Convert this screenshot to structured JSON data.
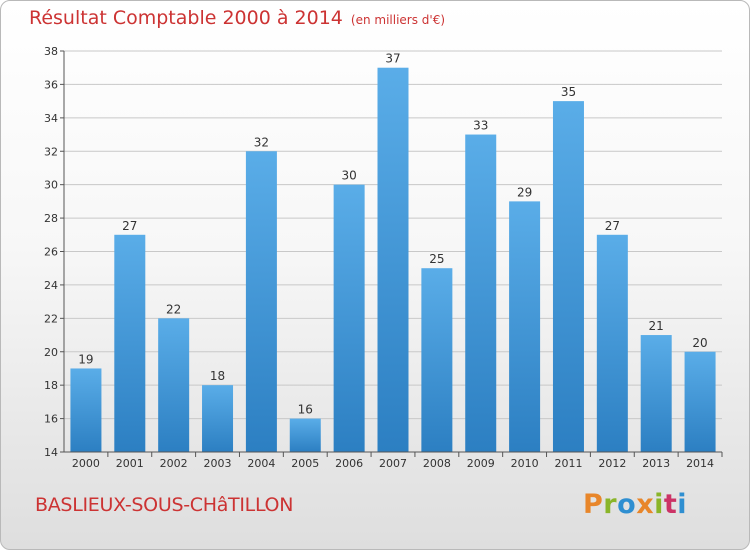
{
  "header": {
    "title": "Résultat Comptable 2000 à 2014",
    "unit": "(en milliers d'€)"
  },
  "footer": {
    "town": "BASLIEUX-SOUS-CHâTILLON",
    "brand": "Proxiti",
    "brand_colors": [
      "#e8862a",
      "#8ab529",
      "#2f8fd1",
      "#e8862a",
      "#8ab529",
      "#cc3366",
      "#2f8fd1"
    ]
  },
  "colors": {
    "bar_top": "#5aade8",
    "bar_bottom": "#2c7fc2",
    "accent": "#cc3333"
  },
  "chart_data": {
    "type": "bar",
    "title": "Résultat Comptable 2000 à 2014",
    "subtitle": "(en milliers d'€)",
    "categories": [
      "2000",
      "2001",
      "2002",
      "2003",
      "2004",
      "2005",
      "2006",
      "2007",
      "2008",
      "2009",
      "2010",
      "2011",
      "2012",
      "2013",
      "2014"
    ],
    "values": [
      19,
      27,
      22,
      18,
      32,
      16,
      30,
      37,
      25,
      33,
      29,
      35,
      27,
      21,
      20
    ],
    "ylim": [
      14,
      38
    ],
    "yticks": [
      14,
      16,
      18,
      20,
      22,
      24,
      26,
      28,
      30,
      32,
      34,
      36,
      38
    ],
    "grid": true,
    "xlabel": "",
    "ylabel": ""
  }
}
